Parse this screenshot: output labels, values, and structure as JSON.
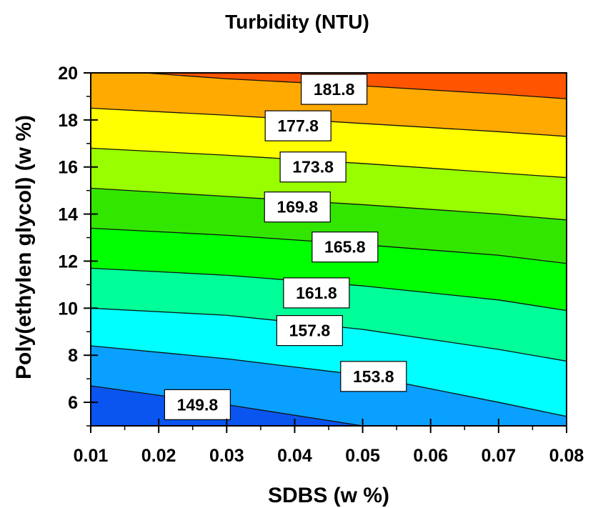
{
  "chart_data": {
    "type": "contour",
    "title": "Turbidity (NTU)",
    "xlabel": "SDBS (w %)",
    "ylabel": "Poly(ethylen glycol) (w %)",
    "xlim": [
      0.01,
      0.08
    ],
    "ylim": [
      5,
      20
    ],
    "x_ticks": [
      "0.01",
      "0.02",
      "0.03",
      "0.04",
      "0.05",
      "0.06",
      "0.07",
      "0.08"
    ],
    "y_ticks": [
      "6",
      "8",
      "10",
      "12",
      "14",
      "16",
      "18",
      "20"
    ],
    "contour_levels": [
      149.8,
      153.8,
      157.8,
      161.8,
      165.8,
      169.8,
      173.8,
      177.8,
      181.8
    ],
    "contour_label_text": [
      "149.8",
      "153.8",
      "157.8",
      "161.8",
      "165.8",
      "169.8",
      "173.8",
      "177.8",
      "181.8"
    ],
    "contour_lines": [
      {
        "level": 149.8,
        "points": [
          [
            0.01,
            6.7
          ],
          [
            0.03,
            5.9
          ],
          [
            0.05,
            5.0
          ]
        ]
      },
      {
        "level": 153.8,
        "points": [
          [
            0.01,
            8.4
          ],
          [
            0.03,
            7.85
          ],
          [
            0.05,
            7.15
          ],
          [
            0.07,
            6.0
          ],
          [
            0.08,
            5.4
          ]
        ]
      },
      {
        "level": 157.8,
        "points": [
          [
            0.01,
            10.0
          ],
          [
            0.03,
            9.7
          ],
          [
            0.05,
            9.1
          ],
          [
            0.07,
            8.25
          ],
          [
            0.08,
            7.75
          ]
        ]
      },
      {
        "level": 161.8,
        "points": [
          [
            0.01,
            11.7
          ],
          [
            0.03,
            11.4
          ],
          [
            0.05,
            10.95
          ],
          [
            0.07,
            10.35
          ],
          [
            0.08,
            9.9
          ]
        ]
      },
      {
        "level": 165.8,
        "points": [
          [
            0.01,
            13.4
          ],
          [
            0.03,
            13.1
          ],
          [
            0.05,
            12.7
          ],
          [
            0.07,
            12.25
          ],
          [
            0.08,
            11.9
          ]
        ]
      },
      {
        "level": 169.8,
        "points": [
          [
            0.01,
            15.1
          ],
          [
            0.03,
            14.75
          ],
          [
            0.05,
            14.4
          ],
          [
            0.07,
            14.0
          ],
          [
            0.08,
            13.75
          ]
        ]
      },
      {
        "level": 173.8,
        "points": [
          [
            0.01,
            16.8
          ],
          [
            0.03,
            16.5
          ],
          [
            0.05,
            16.15
          ],
          [
            0.07,
            15.75
          ],
          [
            0.08,
            15.55
          ]
        ]
      },
      {
        "level": 177.8,
        "points": [
          [
            0.01,
            18.5
          ],
          [
            0.03,
            18.2
          ],
          [
            0.05,
            17.85
          ],
          [
            0.07,
            17.5
          ],
          [
            0.08,
            17.3
          ]
        ]
      },
      {
        "level": 181.8,
        "points": [
          [
            0.018,
            20.0
          ],
          [
            0.03,
            19.75
          ],
          [
            0.05,
            19.45
          ],
          [
            0.07,
            19.1
          ],
          [
            0.08,
            18.9
          ]
        ]
      }
    ],
    "label_positions": [
      {
        "label": "149.8",
        "x": 0.0257,
        "y": 5.9
      },
      {
        "label": "153.8",
        "x": 0.0516,
        "y": 7.1
      },
      {
        "label": "157.8",
        "x": 0.0422,
        "y": 9.05
      },
      {
        "label": "161.8",
        "x": 0.0432,
        "y": 10.65
      },
      {
        "label": "165.8",
        "x": 0.0474,
        "y": 12.6
      },
      {
        "label": "169.8",
        "x": 0.0404,
        "y": 14.3
      },
      {
        "label": "173.8",
        "x": 0.0427,
        "y": 16.0
      },
      {
        "label": "177.8",
        "x": 0.0405,
        "y": 17.75
      },
      {
        "label": "181.8",
        "x": 0.0458,
        "y": 19.3
      }
    ],
    "band_colors": [
      "#0a55f0",
      "#0aa0ff",
      "#00ffff",
      "#00ff99",
      "#00ff00",
      "#33e600",
      "#99ff00",
      "#ffff00",
      "#ffaa00",
      "#ff5500"
    ],
    "grid": false,
    "legend": "none"
  }
}
